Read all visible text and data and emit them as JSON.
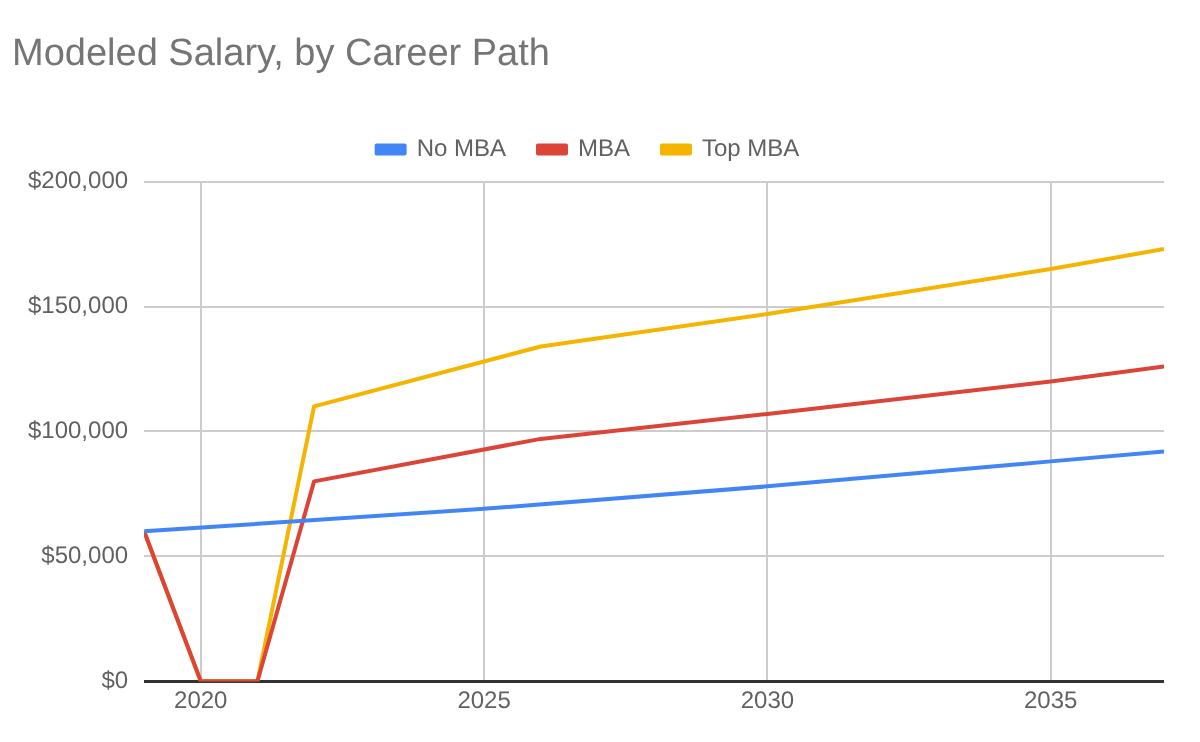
{
  "chart_data": {
    "type": "line",
    "title": "Modeled Salary, by Career Path",
    "xlim": [
      2019,
      2037
    ],
    "xticks": [
      2020,
      2025,
      2030,
      2035
    ],
    "ylim": [
      0,
      200000
    ],
    "yticks": [
      {
        "value": 0,
        "label": "$0"
      },
      {
        "value": 50000,
        "label": "$50,000"
      },
      {
        "value": 100000,
        "label": "$100,000"
      },
      {
        "value": 150000,
        "label": "$150,000"
      },
      {
        "value": 200000,
        "label": "$200,000"
      }
    ],
    "grid": true,
    "legend": "top",
    "marker": "none",
    "line_style": "solid",
    "series": [
      {
        "name": "No MBA",
        "color": "#4285f4",
        "x": [
          2019,
          2025,
          2030,
          2035,
          2037
        ],
        "values": [
          60000,
          69000,
          78000,
          88000,
          92000
        ]
      },
      {
        "name": "MBA",
        "color": "#db4437",
        "x": [
          2019,
          2020,
          2021,
          2022,
          2026,
          2030,
          2035,
          2037
        ],
        "values": [
          60000,
          0,
          0,
          80000,
          97000,
          107000,
          120000,
          126000
        ]
      },
      {
        "name": "Top MBA",
        "color": "#f4b400",
        "x": [
          2019,
          2020,
          2021,
          2022,
          2026,
          2030,
          2035,
          2037
        ],
        "values": [
          60000,
          0,
          0,
          110000,
          134000,
          147000,
          165000,
          173000
        ]
      }
    ]
  }
}
